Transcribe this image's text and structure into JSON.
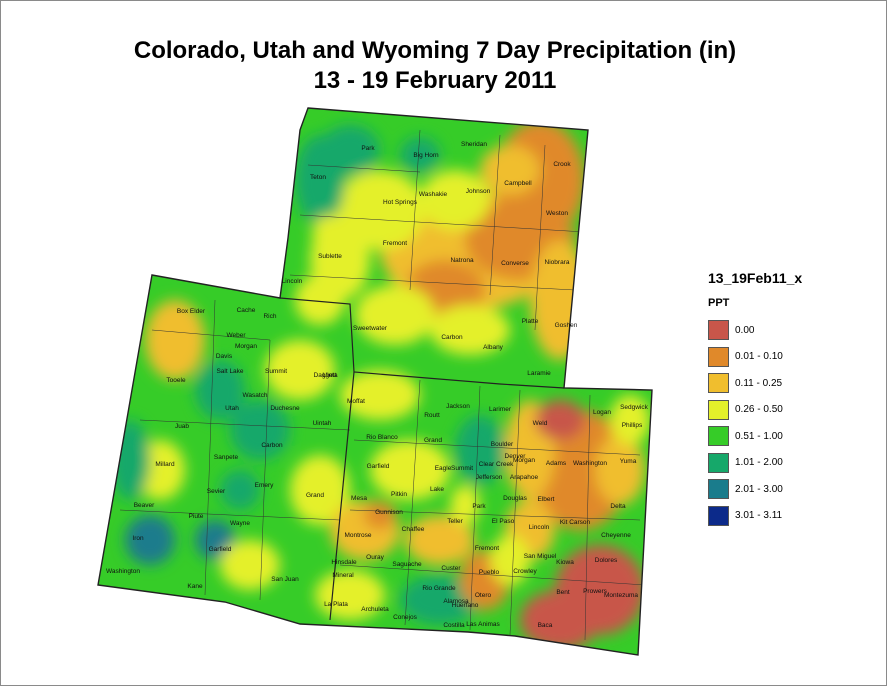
{
  "title": {
    "line1": "Colorado, Utah and Wyoming 7 Day Precipitation (in)",
    "line2": "13 - 19 February 2011"
  },
  "legend": {
    "layer_name": "13_19Feb11_x",
    "field": "PPT",
    "classes": [
      {
        "label": "0.00",
        "color": "#c8564a"
      },
      {
        "label": "0.01 - 0.10",
        "color": "#e0892a"
      },
      {
        "label": "0.11 - 0.25",
        "color": "#f0be2e"
      },
      {
        "label": "0.26 - 0.50",
        "color": "#e4f02a"
      },
      {
        "label": "0.51 - 1.00",
        "color": "#36cc28"
      },
      {
        "label": "1.01 - 2.00",
        "color": "#16a86a"
      },
      {
        "label": "2.01 - 3.00",
        "color": "#1a7c8c"
      },
      {
        "label": "3.01 - 3.11",
        "color": "#0c2a8a"
      }
    ]
  },
  "map": {
    "border_color": "#222222",
    "county_labels": {
      "wyoming": [
        "Park",
        "Big Horn",
        "Sheridan",
        "Crook",
        "Teton",
        "Washakie",
        "Johnson",
        "Campbell",
        "Hot Springs",
        "Weston",
        "Fremont",
        "Natrona",
        "Converse",
        "Niobrara",
        "Sublette",
        "Lincoln",
        "Platte",
        "Goshen",
        "Sweetwater",
        "Carbon",
        "Albany",
        "Laramie",
        "Uinta"
      ],
      "utah": [
        "Box Elder",
        "Cache",
        "Rich",
        "Weber",
        "Morgan",
        "Davis",
        "Salt Lake",
        "Summit",
        "Daggett",
        "Tooele",
        "Wasatch",
        "Utah",
        "Duchesne",
        "Uintah",
        "Juab",
        "Carbon",
        "Sanpete",
        "Millard",
        "Emery",
        "Grand",
        "Sevier",
        "Beaver",
        "Piute",
        "Wayne",
        "Iron",
        "Garfield",
        "Washington",
        "Kane",
        "San Juan"
      ],
      "colorado": [
        "Moffat",
        "Routt",
        "Jackson",
        "Larimer",
        "Weld",
        "Logan",
        "Sedgwick",
        "Phillips",
        "Rio Blanco",
        "Grand",
        "Boulder",
        "Morgan",
        "Garfield",
        "Eagle",
        "Summit",
        "Clear Creek",
        "Denver",
        "Adams",
        "Washington",
        "Yuma",
        "Jefferson",
        "Arapahoe",
        "Mesa",
        "Pitkin",
        "Lake",
        "Park",
        "Douglas",
        "Elbert",
        "Kit Carson",
        "Delta",
        "Gunnison",
        "Chaffee",
        "Teller",
        "El Paso",
        "Lincoln",
        "Cheyenne",
        "Montrose",
        "Ouray",
        "Fremont",
        "San Miguel",
        "Hinsdale",
        "Saguache",
        "Custer",
        "Pueblo",
        "Crowley",
        "Kiowa",
        "Dolores",
        "Mineral",
        "Rio Grande",
        "Alamosa",
        "Huerfano",
        "Otero",
        "Bent",
        "Prowers",
        "Montezuma",
        "La Plata",
        "Archuleta",
        "Conejos",
        "Costilla",
        "Las Animas",
        "Baca"
      ]
    }
  }
}
